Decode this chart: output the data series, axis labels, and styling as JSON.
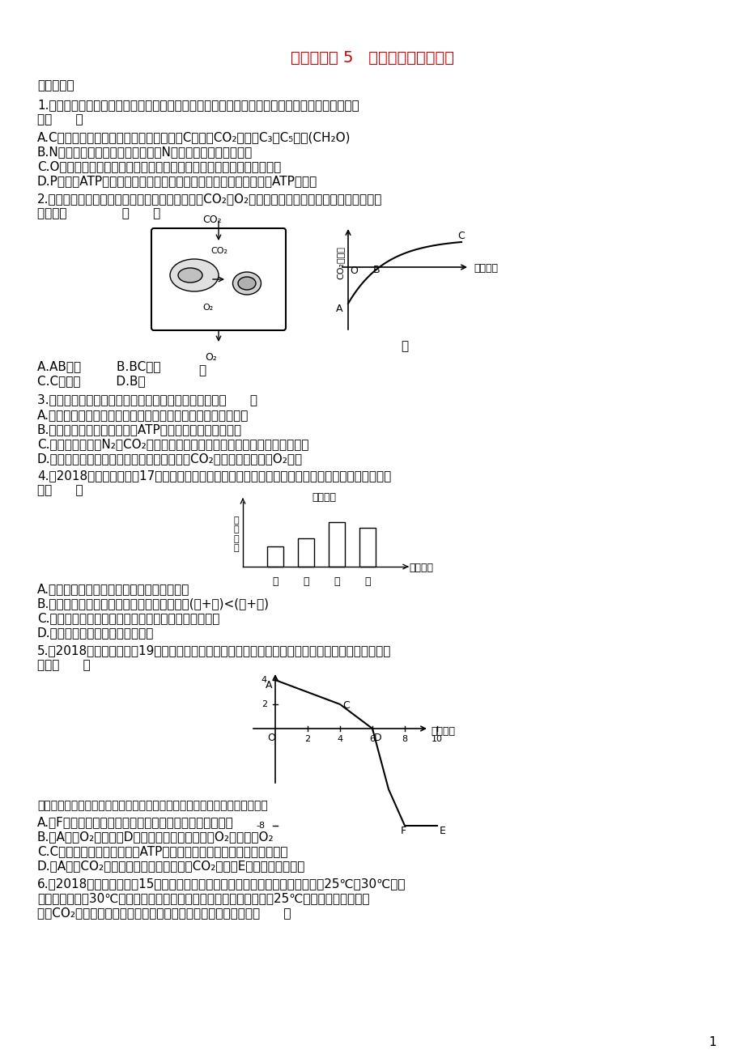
{
  "title": "专题突破练 5   光合作用和细胞呼吸",
  "title_color": "#cc0000",
  "bg_color": "#ffffff",
  "font_color": "#000000",
  "page_number": "1",
  "content": [
    {
      "type": "section",
      "text": "一、选择题"
    },
    {
      "type": "question",
      "num": "1.",
      "text": "组成生物的化学元素在生物体中起重要作用，下列关于几种元素与光合作用关系的叙述，正确的\n是（      ）"
    },
    {
      "type": "option",
      "label": "A.",
      "text": "C是组成糖类的基本元素，在光合作用中C元素从CO₂先后经C₃、C₅形成(CH₂O)"
    },
    {
      "type": "option",
      "label": "B.",
      "text": "N是叶绿素的组成元素之一，没有N植物就不能进行光合作用"
    },
    {
      "type": "option",
      "label": "C.",
      "text": "O是构成有机物的基本元素之一，光合作用制造的有机物中的氧来自水"
    },
    {
      "type": "option",
      "label": "D.",
      "text": "P是构成ATP的必需元素，光合作用中光反应和暗反应过程中均有ATP的合成"
    },
    {
      "type": "question",
      "num": "2.",
      "text": "图甲表示在一定的光照强度下，植物叶肉细胞中CO₂、O₂的来源和去路，则图甲所示状态在图乙中\n的位置是              （      ）"
    },
    {
      "type": "figure2",
      "label_jia": "甲",
      "label_yi": "乙"
    },
    {
      "type": "options_row",
      "items": [
        "A.AB之间",
        "B.BC之间",
        "C.C点以后",
        "D.B点"
      ]
    },
    {
      "type": "question",
      "num": "3.",
      "text": "下列与绿色植物某些生理过程有关的叙述，正确的是（      ）"
    },
    {
      "type": "option",
      "label": "A.",
      "text": "绿色植物的光反应可以在暗处进行，暗反应也可以在光下进行"
    },
    {
      "type": "option",
      "label": "B.",
      "text": "大豆根吸收矿质元素所需的ATP可以直接来源于光合作用"
    },
    {
      "type": "option",
      "label": "C.",
      "text": "水果贮存时充入N₂和CO₂的目的主要是抑制无氧呼吸，延长水果的贮存时间"
    },
    {
      "type": "option",
      "label": "D.",
      "text": "即使给予叶绿素提取液适宜的温度、光照和CO₂，也无法检测到有O₂生成"
    },
    {
      "type": "question",
      "num": "4.",
      "text": "（2018辽宁沈阳模拟，17）下列是新鲜绿叶的四种光合色素在滤纸上分离的情况。以下说法正确的\n是（      ）"
    },
    {
      "type": "figure4"
    },
    {
      "type": "option",
      "label": "A.",
      "text": "提取色素时加入碳酸钙是为了防止滤液挥发"
    },
    {
      "type": "option",
      "label": "B.",
      "text": "水稻在收获时节，叶片中色素含量的多少是(甲+乙)<(丙+丁)"
    },
    {
      "type": "option",
      "label": "C.",
      "text": "四种色素都能溶解在层析液中，乙色素的溶解度最大"
    },
    {
      "type": "option",
      "label": "D.",
      "text": "四种色素，丙和丁主要吸收红光"
    },
    {
      "type": "question",
      "num": "5.",
      "text": "（2018湖南五市联考，19）下图中纵坐标表示植物某种气体吸收量或释放量的变化。下列说法正确\n的是（      ）"
    },
    {
      "type": "figure5"
    },
    {
      "type": "note",
      "text": "（注：不考虑横坐标和纵坐标单位的具体表示形式，单位的表示方法相同。）"
    },
    {
      "type": "option",
      "label": "A.",
      "text": "若F点以后继续提高光照强度，光合作用强度会一直不变"
    },
    {
      "type": "option",
      "label": "B.",
      "text": "若A代表O₂吸收量，D点时，叶肉细胞既不吸收O₂也不释放O₂"
    },
    {
      "type": "option",
      "label": "C.",
      "text": "C点时，叶肉细胞中能产生ATP的场所有细胞质基质、线粒体、叶绿体"
    },
    {
      "type": "option",
      "label": "D.",
      "text": "若A代表CO₂释放量，适当提高大气中的CO₂浓度，E点可能向右下移动"
    },
    {
      "type": "question",
      "num": "6.",
      "text": "（2018河南洛阳质检，15）已知某植物光合作用和细胞呼吸的最适温度分别为25℃和30℃。下\n图表示该植物在30℃时光合强度与光照强度的关系。若将温度降低到25℃的条件下（原光照强\n度和CO₂浓度等不变），从理论上讲，图中相应点的移动应该是（      ）"
    }
  ]
}
